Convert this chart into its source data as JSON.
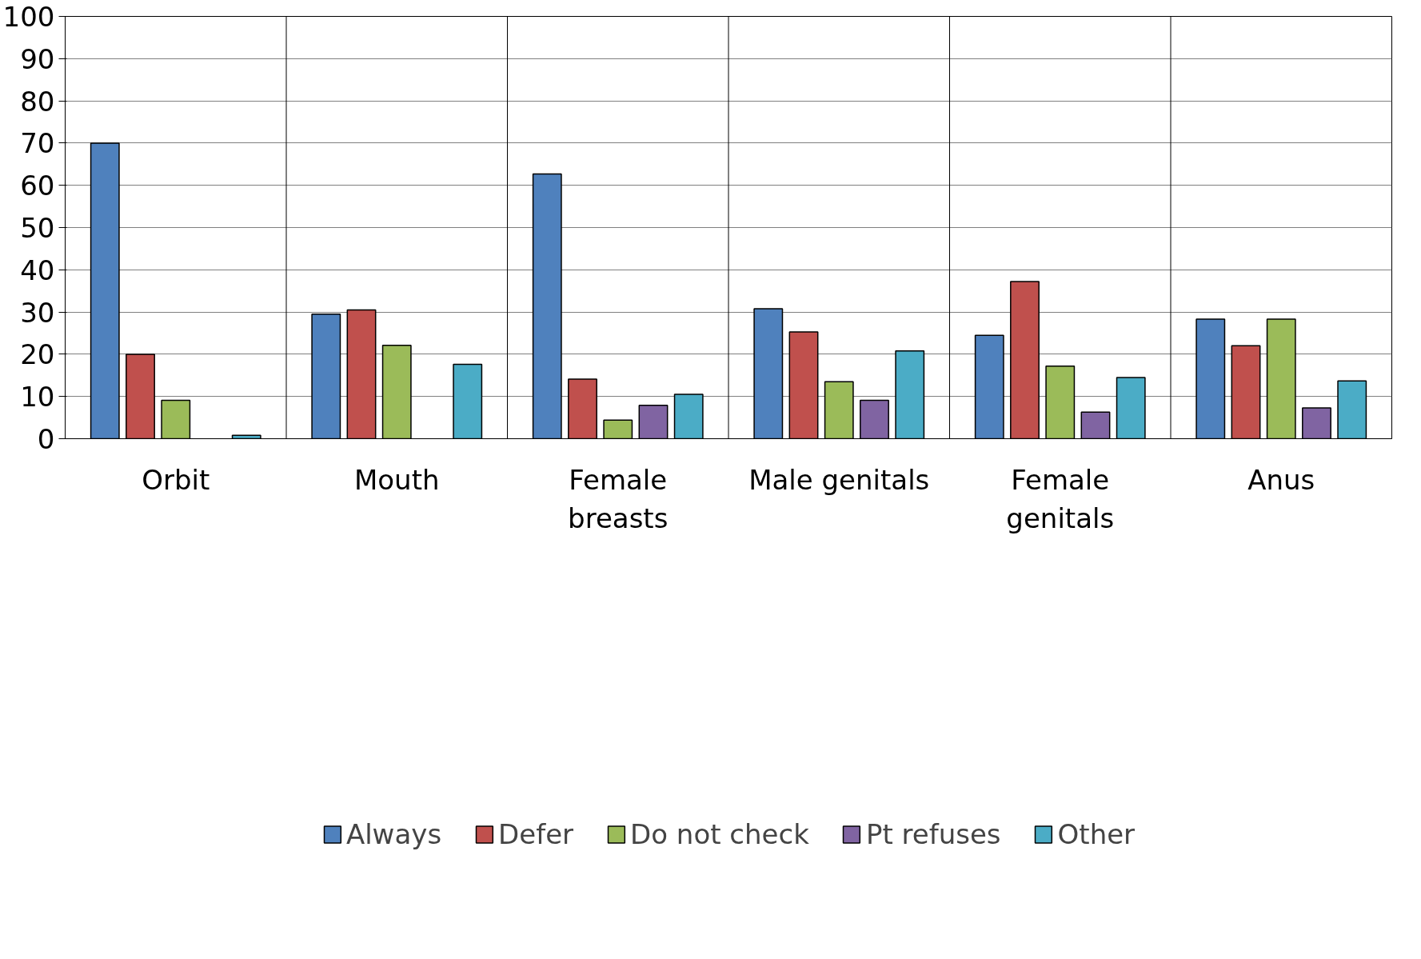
{
  "chart_data": {
    "type": "bar",
    "categories": [
      "Orbit",
      "Mouth",
      "Female breasts",
      "Male genitals",
      "Female genitals",
      "Anus"
    ],
    "series": [
      {
        "name": "Always",
        "color": "#4f81bd",
        "values": [
          70,
          29.5,
          62.7,
          30.8,
          24.5,
          28.3
        ]
      },
      {
        "name": "Defer",
        "color": "#c0504d",
        "values": [
          20,
          30.5,
          14.1,
          25.3,
          37.2,
          22.0
        ]
      },
      {
        "name": "Do not check",
        "color": "#9bbb59",
        "values": [
          9.1,
          22.1,
          4.4,
          13.5,
          17.2,
          28.3
        ]
      },
      {
        "name": "Pt refuses",
        "color": "#8064a2",
        "values": [
          null,
          null,
          7.9,
          9.1,
          6.3,
          7.3
        ]
      },
      {
        "name": "Other",
        "color": "#4bacc6",
        "values": [
          0.8,
          17.6,
          10.5,
          20.8,
          14.5,
          13.7
        ]
      }
    ],
    "ylim": [
      0,
      100
    ],
    "yticks": [
      0,
      10,
      20,
      30,
      40,
      50,
      60,
      70,
      80,
      90,
      100
    ],
    "grid": true,
    "legend": "bottom"
  }
}
